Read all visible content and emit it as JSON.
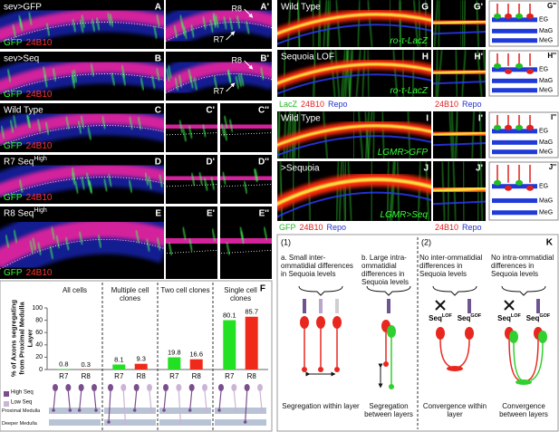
{
  "panels": [
    {
      "label": "A",
      "title": "sev>GFP",
      "legend": [
        {
          "text": "GFP",
          "color": "#33ff33"
        },
        {
          "text": "24B10",
          "color": "#ff3333"
        }
      ]
    },
    {
      "label": "A'",
      "annotations": [
        "R8",
        "R7"
      ]
    },
    {
      "label": "B",
      "title": "sev>Seq",
      "legend": [
        {
          "text": "GFP",
          "color": "#33ff33"
        },
        {
          "text": "24B10",
          "color": "#ff3333"
        }
      ]
    },
    {
      "label": "B'",
      "annotations": [
        "R8",
        "R7"
      ]
    },
    {
      "label": "C",
      "title": "Wild Type",
      "legend": [
        {
          "text": "GFP",
          "color": "#33ff33"
        },
        {
          "text": "24B10",
          "color": "#ff3333"
        }
      ]
    },
    {
      "label": "C'"
    },
    {
      "label": "C''"
    },
    {
      "label": "D",
      "title": "R7 Seq",
      "title_sup": "High",
      "legend": [
        {
          "text": "GFP",
          "color": "#33ff33"
        },
        {
          "text": "24B10",
          "color": "#ff3333"
        }
      ]
    },
    {
      "label": "D'"
    },
    {
      "label": "D''"
    },
    {
      "label": "E",
      "title": "R8 Seq",
      "title_sup": "High",
      "legend": [
        {
          "text": "GFP",
          "color": "#33ff33"
        },
        {
          "text": "24B10",
          "color": "#ff3333"
        }
      ]
    },
    {
      "label": "E'"
    },
    {
      "label": "E''"
    },
    {
      "label": "G",
      "title": "Wild Type",
      "legend": [
        {
          "text": "ro-τ-LacZ",
          "color": "#33ff33"
        }
      ]
    },
    {
      "label": "G'"
    },
    {
      "label": "H",
      "title": "Sequoia LOF",
      "legend": [
        {
          "text": "ro-τ-LacZ",
          "color": "#33ff33"
        }
      ]
    },
    {
      "label": "H'"
    },
    {
      "label": "I",
      "title": "Wild Type",
      "legend": [
        {
          "text": "LGMR>GFP",
          "color": "#33ff33"
        }
      ]
    },
    {
      "label": "I'"
    },
    {
      "label": "J",
      "title": ">Sequoia",
      "legend": [
        {
          "text": "LGMR>Seq",
          "color": "#33ff33"
        }
      ]
    },
    {
      "label": "J'"
    }
  ],
  "captions": [
    {
      "items": [
        {
          "text": "LacZ",
          "color": "#1fb81f"
        },
        {
          "text": "24B10",
          "color": "#e02020"
        },
        {
          "text": "Repo",
          "color": "#2233cc"
        }
      ]
    },
    {
      "items": [
        {
          "text": "24B10",
          "color": "#e02020"
        },
        {
          "text": "Repo",
          "color": "#2233cc"
        }
      ]
    },
    {
      "items": [
        {
          "text": "GFP",
          "color": "#1fb81f"
        },
        {
          "text": "24B10",
          "color": "#e02020"
        },
        {
          "text": "Repo",
          "color": "#2233cc"
        }
      ]
    },
    {
      "items": [
        {
          "text": "24B10",
          "color": "#e02020"
        },
        {
          "text": "Repo",
          "color": "#2233cc"
        }
      ]
    }
  ],
  "schematics": [
    {
      "label": "G''",
      "layers": [
        "EG",
        "MaG",
        "MeG"
      ]
    },
    {
      "label": "H''",
      "layers": [
        "EG",
        "MaG",
        "MeG"
      ]
    },
    {
      "label": "I''",
      "layers": [
        "EG",
        "MaG",
        "MeG"
      ]
    },
    {
      "label": "J''",
      "layers": [
        "EG",
        "MaG",
        "MeG"
      ]
    }
  ],
  "chart_data": {
    "type": "bar",
    "label": "F",
    "ylabel": "% of Axons segregating from Proximal Medulla Layer",
    "categories": [
      "All cells",
      "Multiple cell clones",
      "Two cell clones",
      "Single cell clones"
    ],
    "series": [
      {
        "name": "R7",
        "color": "#22e022",
        "values": [
          0.8,
          8.1,
          19.8,
          80.1
        ]
      },
      {
        "name": "R8",
        "color": "#f02a1a",
        "values": [
          0.3,
          9.3,
          16.6,
          85.7
        ]
      }
    ],
    "ylim": [
      0,
      100
    ],
    "yticks": [
      0,
      20,
      40,
      60,
      80,
      100
    ],
    "legend": {
      "high": "High Seq",
      "low": "Low Seq",
      "proximal": "Proximal Medulla",
      "deeper": "Deeper Medulla"
    }
  },
  "panel_k": {
    "label": "K",
    "part1": "(1)",
    "part2": "(2)",
    "items": [
      {
        "heading": "a. Small inter-ommatidial differences in Sequoia levels",
        "caption": "Segregation within layer"
      },
      {
        "heading": "b. Large intra-ommatidial differences in Sequoia levels",
        "caption": "Segregation between layers"
      },
      {
        "heading": "No inter-ommatidial differences in Sequoia levels",
        "caption": "Convergence within layer",
        "genotypes": [
          {
            "text": "Seq",
            "sup": "LOF"
          },
          {
            "text": "Seq",
            "sup": "GOF"
          }
        ]
      },
      {
        "heading": "No intra-ommatidial differences in Sequoia levels",
        "caption": "Convergence between layers",
        "genotypes": [
          {
            "text": "Seq",
            "sup": "LOF"
          },
          {
            "text": "Seq",
            "sup": "GOF"
          }
        ]
      }
    ]
  }
}
